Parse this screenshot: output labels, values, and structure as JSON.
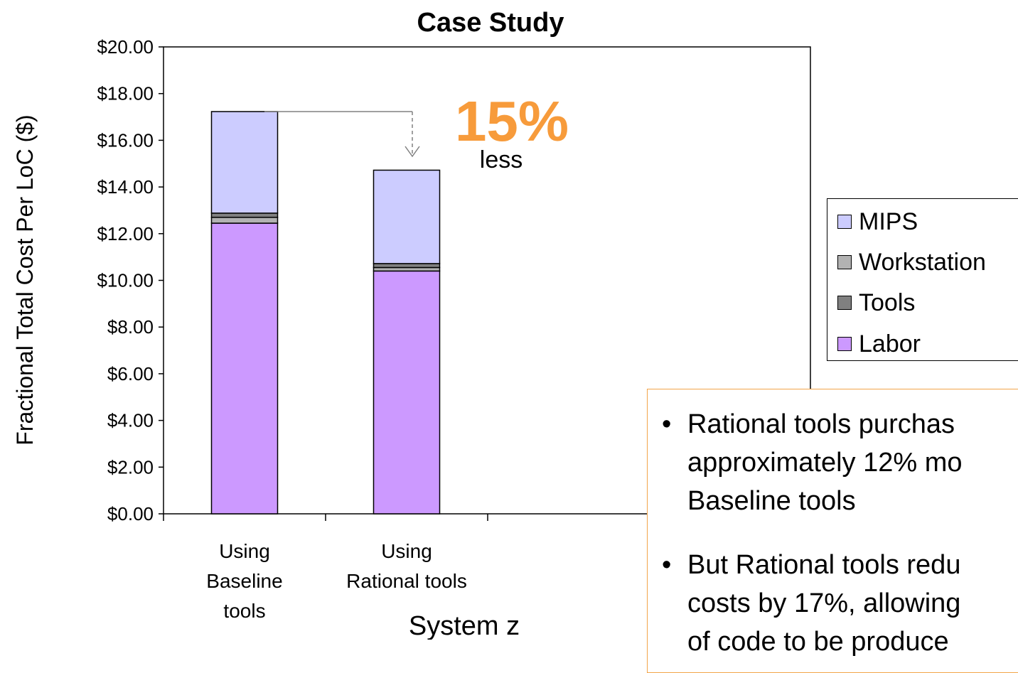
{
  "chart_data": {
    "type": "bar",
    "stacked": true,
    "title": "Case Study",
    "xlabel": "System z",
    "ylabel": "Fractional Total Cost Per LoC ($)",
    "ylim": [
      0,
      20
    ],
    "yticks": [
      "$0.00",
      "$2.00",
      "$4.00",
      "$6.00",
      "$8.00",
      "$10.00",
      "$12.00",
      "$14.00",
      "$16.00",
      "$18.00",
      "$20.00"
    ],
    "categories": [
      "Using\nBaseline\ntools",
      "Using\nRational tools"
    ],
    "series": [
      {
        "name": "Labor",
        "color": "#cc99ff",
        "values": [
          12.45,
          10.4
        ]
      },
      {
        "name": "Workstation",
        "color": "#b2b2b2",
        "values": [
          0.25,
          0.15
        ]
      },
      {
        "name": "Tools",
        "color": "#808080",
        "values": [
          0.18,
          0.17
        ]
      },
      {
        "name": "MIPS",
        "color": "#ccccff",
        "values": [
          4.35,
          4.0
        ]
      }
    ],
    "legend": {
      "position": "right",
      "items": [
        {
          "name": "MIPS",
          "color": "#ccccff"
        },
        {
          "name": "Workstation",
          "color": "#b2b2b2"
        },
        {
          "name": "Tools",
          "color": "#808080"
        },
        {
          "name": "Labor",
          "color": "#cc99ff"
        }
      ]
    },
    "annotation": {
      "value": "15%",
      "text": "less",
      "color": "#f79b3b"
    },
    "grid": false
  },
  "notes": [
    {
      "bullet": "•",
      "text": "Rational tools purchas\napproximately 12% mo\nBaseline tools"
    },
    {
      "bullet": "•",
      "text": "But Rational tools redu\ncosts by 17%, allowing\nof code to be produce"
    }
  ]
}
